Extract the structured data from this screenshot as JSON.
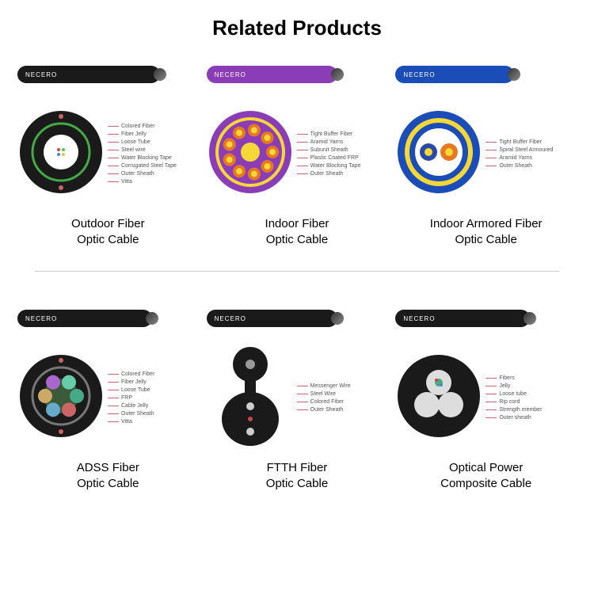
{
  "title": "Related Products",
  "brand": "NECERO",
  "products": [
    {
      "name_line1": "Outdoor Fiber",
      "name_line2": "Optic Cable",
      "cable_color": "#1a1a1a",
      "cable_width": 180,
      "cross_bg": "#1a1a1a",
      "cross_stroke": "#44aa44",
      "inner_fill": "#ffffff",
      "labels": [
        "Colored Fiber",
        "Fiber Jelly",
        "Loose Tube",
        "Steel wire",
        "Water Blocking Tape",
        "Corrugated Steel Tape",
        "Outer Sheath",
        "Vitta"
      ]
    },
    {
      "name_line1": "Indoor Fiber",
      "name_line2": "Optic Cable",
      "cable_color": "#8b3db8",
      "cable_width": 165,
      "cross_bg": "#8b3db8",
      "cross_stroke": "#f5d838",
      "inner_fill": "#8b3db8",
      "labels": [
        "Tight Buffer Fiber",
        "Aramid Yarns",
        "Subunit Sheath",
        "Plastic Coated FRP",
        "Water Blocking Tape",
        "Outer Sheath"
      ]
    },
    {
      "name_line1": "Indoor Armored Fiber",
      "name_line2": "Optic Cable",
      "cable_color": "#1a4db8",
      "cable_width": 150,
      "cross_bg": "#1a4db8",
      "cross_stroke": "#f5d838",
      "inner_fill": "#ffffff",
      "labels": [
        "Tight Buffer Fiber",
        "Spiral Steel Armoured",
        "Aramid Yarns",
        "Outer Sheath"
      ]
    },
    {
      "name_line1": "ADSS Fiber",
      "name_line2": "Optic Cable",
      "cable_color": "#1a1a1a",
      "cable_width": 170,
      "cross_bg": "#1a1a1a",
      "cross_stroke": "#777777",
      "inner_fill": "#3a5a3a",
      "labels": [
        "Colored Fiber",
        "Fiber Jelly",
        "Loose Tube",
        "FRP",
        "Cable Jelly",
        "Outer Sheath",
        "Vitta"
      ]
    },
    {
      "name_line1": "FTTH Fiber",
      "name_line2": "Optic Cable",
      "cable_color": "#1a1a1a",
      "cable_width": 165,
      "cross_bg": "#1a1a1a",
      "cross_stroke": "#888888",
      "inner_fill": "#1a1a1a",
      "is_ftth": true,
      "labels": [
        "Messenger Wire",
        "Steel Wire",
        "Colored Fiber",
        "Outer Sheath"
      ]
    },
    {
      "name_line1": "Optical Power",
      "name_line2": "Composite Cable",
      "cable_color": "#1a1a1a",
      "cable_width": 170,
      "cross_bg": "#1a1a1a",
      "cross_stroke": "#cccccc",
      "inner_fill": "#dddddd",
      "labels": [
        "Fibers",
        "Jelly",
        "Loose tube",
        "Rip cord",
        "Strength member",
        "Outer sheath"
      ]
    }
  ]
}
